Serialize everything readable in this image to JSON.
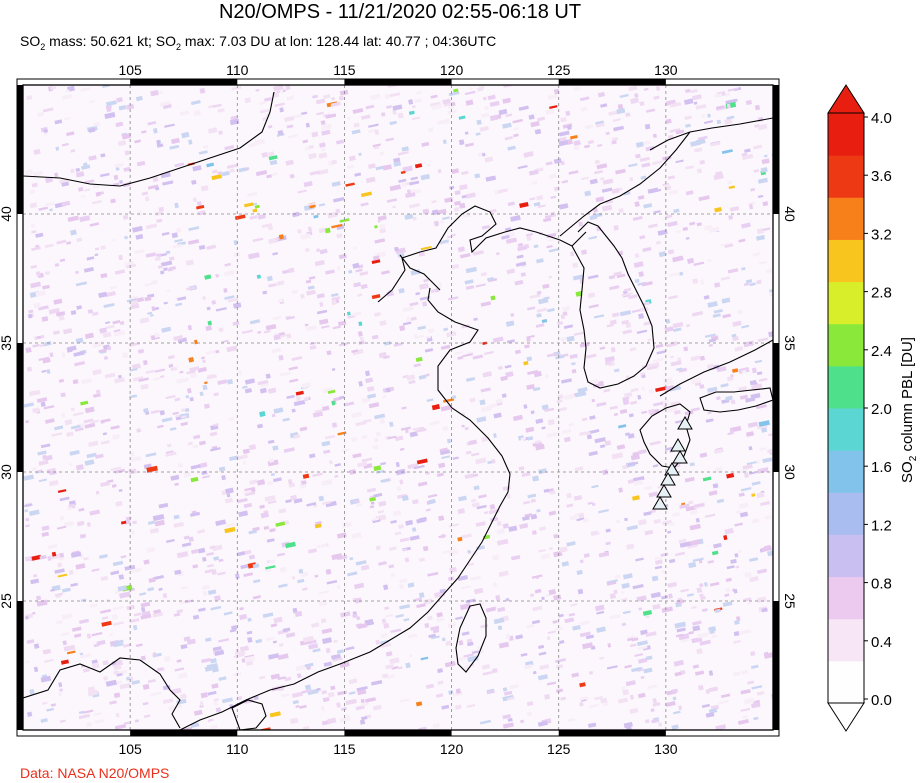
{
  "title": "N20/OMPS - 11/21/2020 02:55-06:18 UT",
  "subtitle": {
    "so2_mass_label": "SO",
    "so2_mass_sub": "2",
    "so2_mass_text": " mass: 50.621 kt; SO",
    "so2_max_sub": "2",
    "so2_max_text": " max: 7.03 DU at lon: 128.44 lat: 40.77 ; 04:36UTC"
  },
  "map": {
    "lon_ticks_top": [
      "105",
      "110",
      "115",
      "120",
      "125",
      "130"
    ],
    "lon_ticks_bottom": [
      "105",
      "110",
      "115",
      "120",
      "125",
      "130"
    ],
    "lat_ticks_left": [
      "40",
      "35",
      "30",
      "25"
    ],
    "lat_ticks_right": [
      "40",
      "35",
      "30",
      "25"
    ],
    "lon_range": [
      100,
      135
    ],
    "lat_range": [
      20,
      45
    ],
    "volcano_marker": "triangle-icon"
  },
  "colorbar": {
    "label_main": "SO",
    "label_sub": "2",
    "label_rest": " column PBL [DU]",
    "ticks": [
      "4.0",
      "3.6",
      "3.2",
      "2.8",
      "2.4",
      "2.0",
      "1.6",
      "1.2",
      "0.8",
      "0.4",
      "0.0"
    ],
    "colors": [
      "#fefefe",
      "#f7e6f5",
      "#eccaf0",
      "#c9bff0",
      "#a9bdf0",
      "#82c3ec",
      "#5cd6d2",
      "#4fe08c",
      "#8ae83a",
      "#d9ee2a",
      "#f8c51e",
      "#f7801a",
      "#ee3a14",
      "#e81f10"
    ]
  },
  "credit": "Data: NASA N20/OMPS"
}
